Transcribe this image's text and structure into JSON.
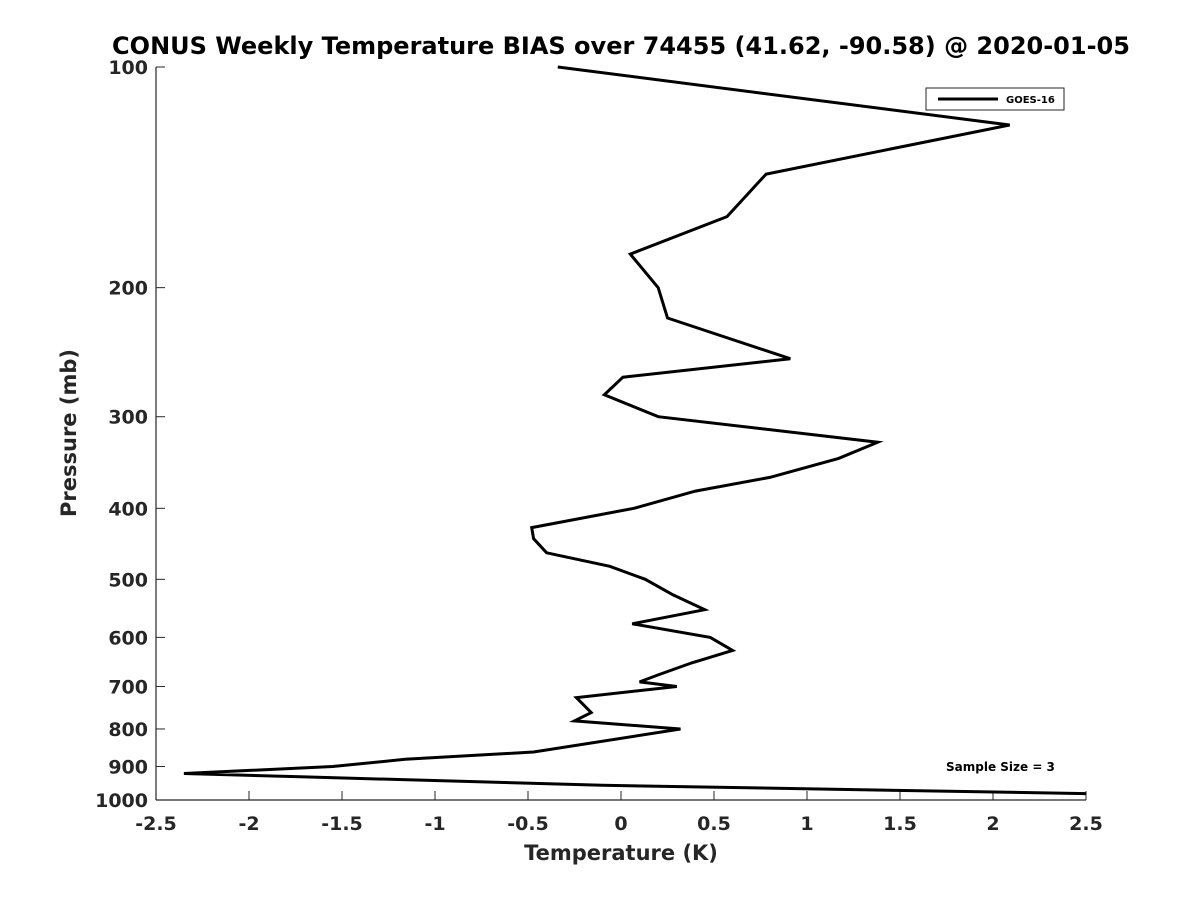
{
  "chart_data": {
    "type": "line",
    "title": "CONUS Weekly Temperature BIAS over 74455 (41.62, -90.58) @ 2020-01-05",
    "xlabel": "Temperature (K)",
    "ylabel": "Pressure (mb)",
    "xlim": [
      -2.5,
      2.5
    ],
    "ylim": [
      100,
      1000
    ],
    "y_scale": "log",
    "y_reversed": true,
    "x_ticks": [
      "-2.5",
      "-2",
      "-1.5",
      "-1",
      "-0.5",
      "0",
      "0.5",
      "1",
      "1.5",
      "2",
      "2.5"
    ],
    "y_ticks": [
      "100",
      "200",
      "300",
      "400",
      "500",
      "600",
      "700",
      "800",
      "900",
      "1000"
    ],
    "grid": false,
    "legend_position": "top-right",
    "annotation": "Sample Size = 3",
    "series": [
      {
        "name": "GOES-16",
        "color": "#000000",
        "points": [
          {
            "x": -0.34,
            "p": 100
          },
          {
            "x": 2.09,
            "p": 120
          },
          {
            "x": 0.78,
            "p": 140
          },
          {
            "x": 0.57,
            "p": 160
          },
          {
            "x": 0.05,
            "p": 180
          },
          {
            "x": 0.2,
            "p": 200
          },
          {
            "x": 0.25,
            "p": 220
          },
          {
            "x": 0.91,
            "p": 250
          },
          {
            "x": 0.01,
            "p": 265
          },
          {
            "x": -0.09,
            "p": 280
          },
          {
            "x": 0.2,
            "p": 300
          },
          {
            "x": 1.38,
            "p": 325
          },
          {
            "x": 1.17,
            "p": 342
          },
          {
            "x": 0.8,
            "p": 363
          },
          {
            "x": 0.4,
            "p": 379
          },
          {
            "x": 0.07,
            "p": 400
          },
          {
            "x": -0.48,
            "p": 425
          },
          {
            "x": -0.47,
            "p": 440
          },
          {
            "x": -0.4,
            "p": 460
          },
          {
            "x": -0.06,
            "p": 480
          },
          {
            "x": 0.13,
            "p": 500
          },
          {
            "x": 0.28,
            "p": 525
          },
          {
            "x": 0.45,
            "p": 550
          },
          {
            "x": 0.06,
            "p": 575
          },
          {
            "x": 0.48,
            "p": 600
          },
          {
            "x": 0.6,
            "p": 625
          },
          {
            "x": 0.38,
            "p": 650
          },
          {
            "x": 0.2,
            "p": 675
          },
          {
            "x": 0.1,
            "p": 690
          },
          {
            "x": 0.3,
            "p": 700
          },
          {
            "x": -0.24,
            "p": 725
          },
          {
            "x": -0.16,
            "p": 760
          },
          {
            "x": -0.25,
            "p": 780
          },
          {
            "x": 0.32,
            "p": 800
          },
          {
            "x": -0.47,
            "p": 860
          },
          {
            "x": -1.16,
            "p": 880
          },
          {
            "x": -1.55,
            "p": 900
          },
          {
            "x": -2.35,
            "p": 920
          },
          {
            "x": -1.7,
            "p": 930
          },
          {
            "x": -0.1,
            "p": 955
          },
          {
            "x": 2.5,
            "p": 980
          }
        ]
      }
    ]
  }
}
